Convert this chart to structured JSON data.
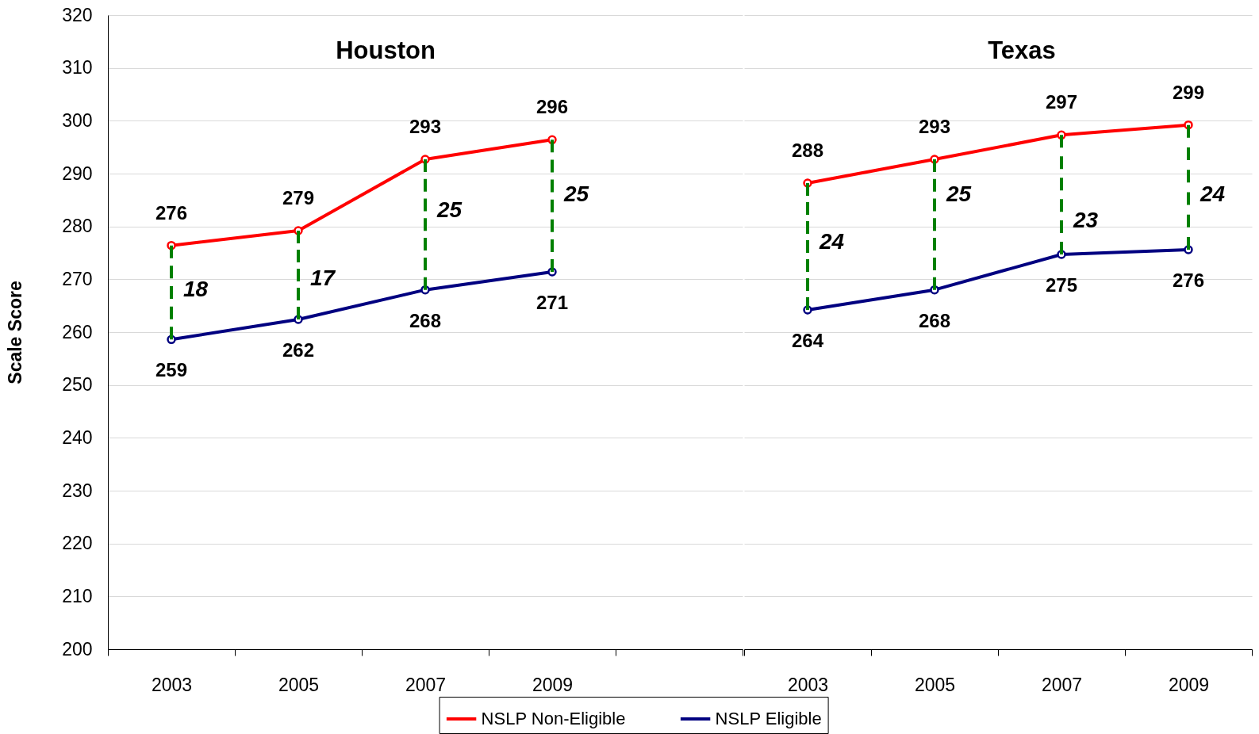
{
  "chart_data": [
    {
      "type": "line",
      "title": "Houston",
      "ylabel": "Scale Score",
      "categories": [
        "2003",
        "2005",
        "2007",
        "2009",
        null
      ],
      "series": [
        {
          "name": "NSLP Non-Eligible",
          "color": "#ff0000",
          "values": [
            276.4,
            279.2,
            292.7,
            296.4,
            null
          ],
          "value_labels": [
            "276",
            "279",
            "293",
            "296",
            null
          ],
          "errors": [
            [
              258.6,
              276.4
            ],
            [
              262.4,
              279.2
            ],
            [
              268.0,
              292.7
            ],
            [
              271.4,
              296.4
            ],
            null
          ]
        },
        {
          "name": "NSLP Eligible",
          "color": "#000080",
          "values": [
            258.6,
            262.4,
            268.0,
            271.4,
            null
          ],
          "value_labels": [
            "259",
            "262",
            "268",
            "271",
            null
          ]
        }
      ],
      "ylim": [
        200,
        320
      ],
      "yticks": [
        200,
        210,
        220,
        230,
        240,
        250,
        260,
        270,
        280,
        290,
        300,
        310,
        320
      ],
      "grid": "y",
      "marker": "circle",
      "legend": "bottom",
      "annotations": [
        {
          "text": "18",
          "x": "2003",
          "y": 268
        },
        {
          "text": "17",
          "x": "2005",
          "y": 270
        },
        {
          "text": "25",
          "x": "2007",
          "y": 283
        },
        {
          "text": "25",
          "x": "2009",
          "y": 286
        }
      ]
    },
    {
      "type": "line",
      "title": "Texas",
      "categories": [
        "2003",
        "2005",
        "2007",
        "2009"
      ],
      "series": [
        {
          "name": "NSLP Non-Eligible",
          "color": "#ff0000",
          "values": [
            288.2,
            292.7,
            297.3,
            299.2
          ],
          "value_labels": [
            "288",
            "293",
            "297",
            "299"
          ],
          "errors": [
            [
              264.2,
              288.2
            ],
            [
              268.0,
              292.7
            ],
            [
              274.7,
              297.3
            ],
            [
              275.6,
              299.2
            ]
          ]
        },
        {
          "name": "NSLP Eligible",
          "color": "#000080",
          "values": [
            264.2,
            268.0,
            274.7,
            275.6
          ],
          "value_labels": [
            "264",
            "268",
            "275",
            "276"
          ]
        }
      ],
      "ylim": [
        200,
        320
      ],
      "yticks": [
        200,
        210,
        220,
        230,
        240,
        250,
        260,
        270,
        280,
        290,
        300,
        310,
        320
      ],
      "grid": "y",
      "marker": "circle",
      "legend": "bottom",
      "tick_labels": "x",
      "annotations": [
        {
          "text": "24",
          "x": "2003",
          "y": 277
        },
        {
          "text": "25",
          "x": "2005",
          "y": 286
        },
        {
          "text": "23",
          "x": "2007",
          "y": 281
        },
        {
          "text": "24",
          "x": "2009",
          "y": 286
        }
      ]
    }
  ]
}
